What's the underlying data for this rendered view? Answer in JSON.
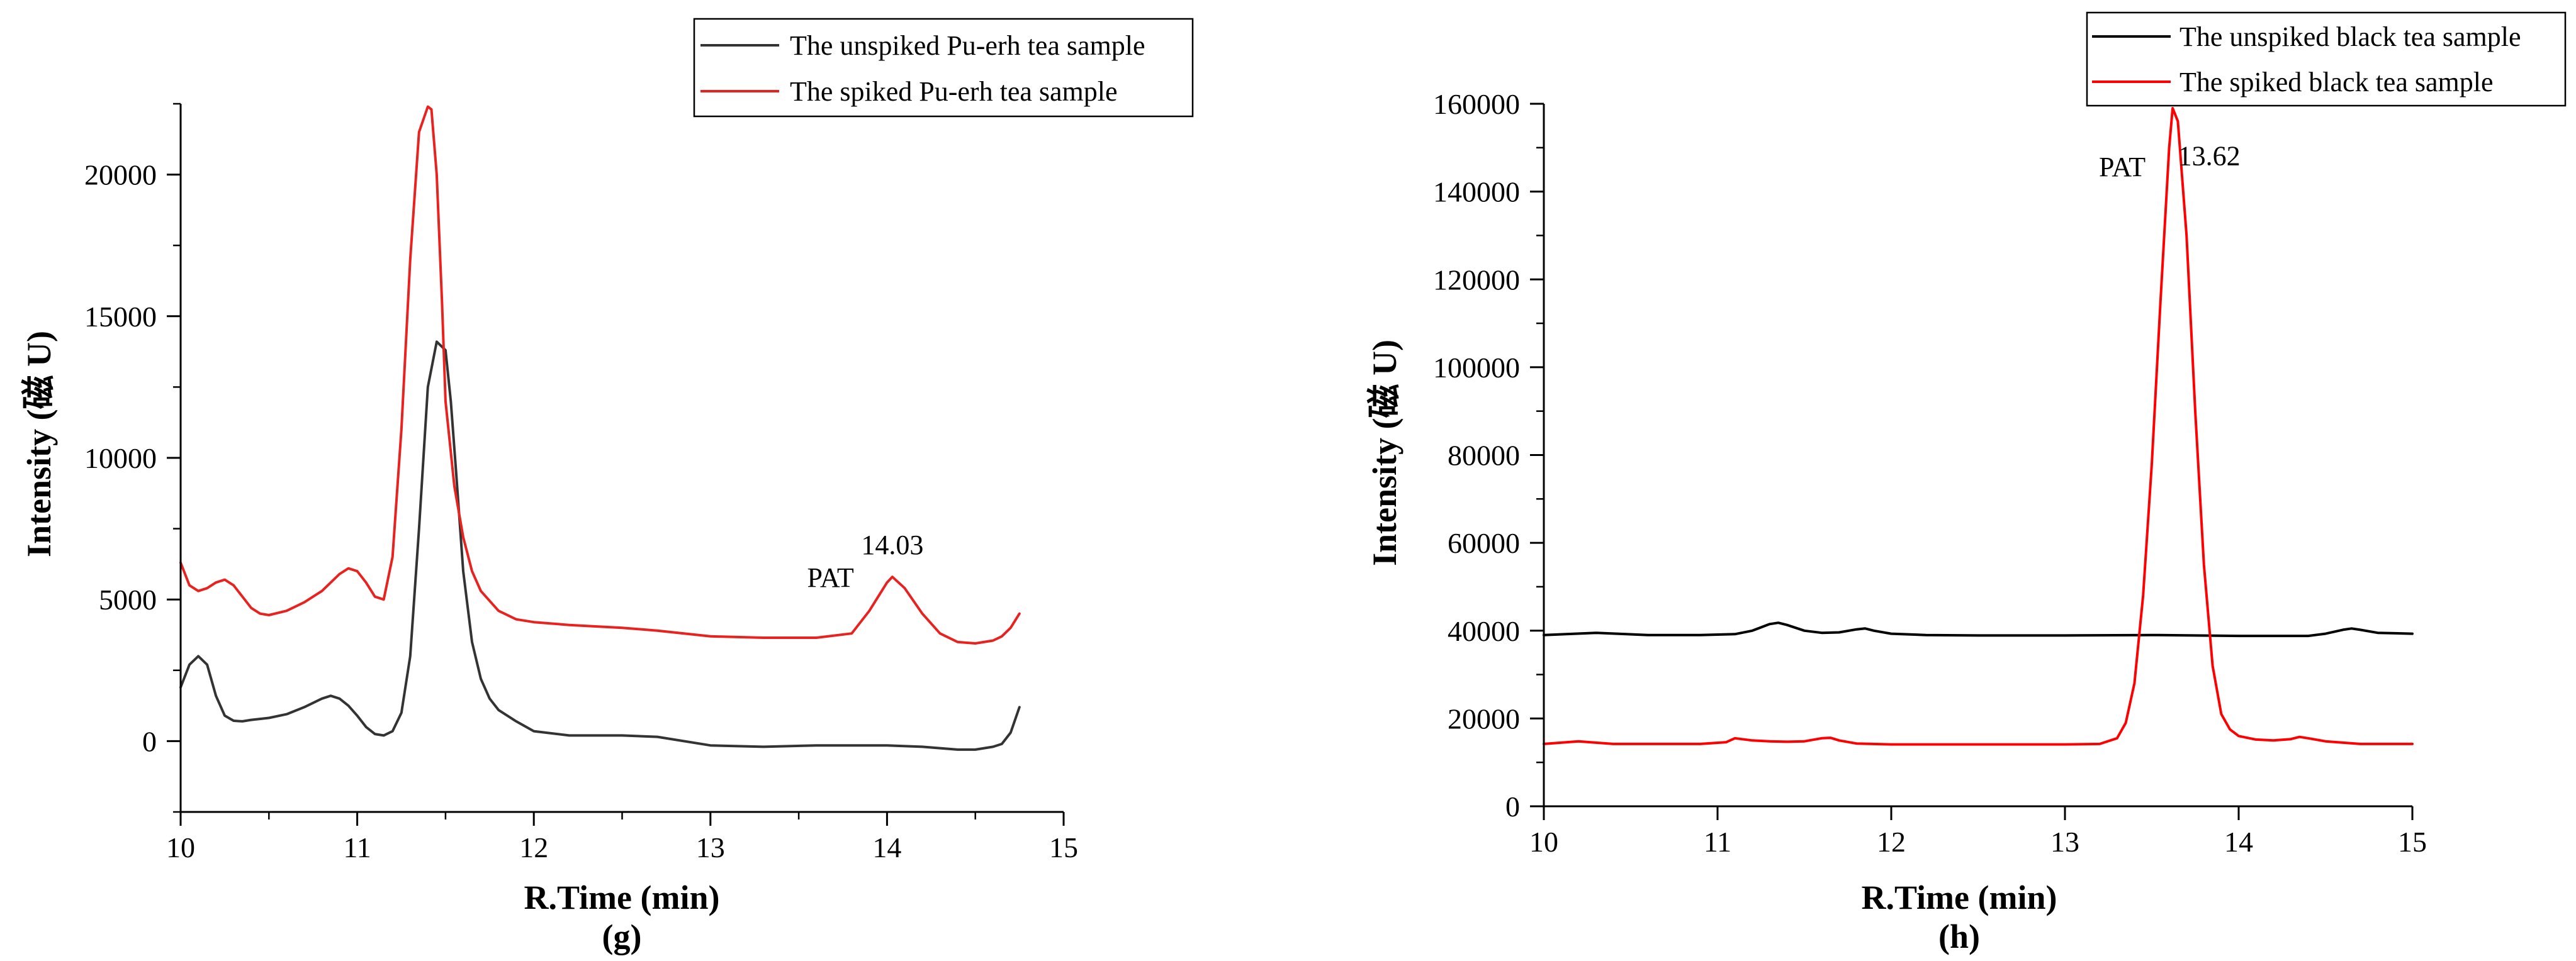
{
  "chart_data": [
    {
      "type": "line",
      "panel_label": "(g)",
      "xlabel": "R.Time (min)",
      "ylabel": "Intensity (磁 U)",
      "xlim": [
        10,
        15
      ],
      "ylim": [
        -2500,
        22500
      ],
      "xticks": [
        10,
        11,
        12,
        13,
        14,
        15
      ],
      "yticks": [
        0,
        5000,
        10000,
        15000,
        20000
      ],
      "legend_position": "top-right",
      "annotations": [
        {
          "text": "PAT",
          "x": 13.68,
          "y": 5450
        },
        {
          "text": "14.03",
          "x": 14.03,
          "y": 6600
        }
      ],
      "series": [
        {
          "name": "The unspiked Pu-erh tea sample",
          "color": "#333333",
          "x": [
            10.0,
            10.05,
            10.1,
            10.15,
            10.2,
            10.25,
            10.3,
            10.35,
            10.4,
            10.5,
            10.6,
            10.7,
            10.8,
            10.85,
            10.9,
            10.95,
            11.0,
            11.05,
            11.1,
            11.15,
            11.2,
            11.25,
            11.3,
            11.35,
            11.4,
            11.45,
            11.5,
            11.53,
            11.56,
            11.6,
            11.65,
            11.7,
            11.75,
            11.8,
            11.9,
            12.0,
            12.2,
            12.5,
            12.7,
            13.0,
            13.3,
            13.6,
            14.0,
            14.2,
            14.4,
            14.5,
            14.6,
            14.65,
            14.7,
            14.75
          ],
          "y": [
            1900,
            2700,
            3000,
            2700,
            1600,
            900,
            720,
            700,
            750,
            820,
            950,
            1200,
            1500,
            1600,
            1500,
            1250,
            900,
            500,
            250,
            200,
            350,
            1000,
            3000,
            7500,
            12500,
            14100,
            13800,
            12000,
            9500,
            6000,
            3500,
            2200,
            1500,
            1100,
            700,
            350,
            200,
            200,
            150,
            -150,
            -200,
            -150,
            -150,
            -200,
            -300,
            -300,
            -200,
            -100,
            300,
            1200
          ]
        },
        {
          "name": "The spiked Pu-erh tea sample",
          "color": "#e8231f",
          "x": [
            10.0,
            10.05,
            10.1,
            10.15,
            10.2,
            10.25,
            10.3,
            10.35,
            10.4,
            10.45,
            10.5,
            10.6,
            10.7,
            10.8,
            10.9,
            10.95,
            11.0,
            11.05,
            11.1,
            11.15,
            11.2,
            11.25,
            11.3,
            11.35,
            11.4,
            11.42,
            11.45,
            11.48,
            11.5,
            11.55,
            11.6,
            11.65,
            11.7,
            11.8,
            11.9,
            12.0,
            12.2,
            12.5,
            12.7,
            13.0,
            13.3,
            13.6,
            13.8,
            13.9,
            14.0,
            14.03,
            14.1,
            14.2,
            14.3,
            14.4,
            14.5,
            14.6,
            14.65,
            14.7,
            14.75
          ],
          "y": [
            6300,
            5500,
            5300,
            5400,
            5600,
            5700,
            5500,
            5100,
            4700,
            4500,
            4450,
            4600,
            4900,
            5300,
            5900,
            6100,
            6000,
            5600,
            5100,
            5000,
            6500,
            11000,
            17000,
            21500,
            22400,
            22300,
            20000,
            15500,
            12000,
            9000,
            7200,
            6000,
            5300,
            4600,
            4300,
            4200,
            4100,
            4000,
            3900,
            3700,
            3650,
            3650,
            3800,
            4600,
            5600,
            5800,
            5400,
            4500,
            3800,
            3500,
            3450,
            3550,
            3700,
            4000,
            4500
          ]
        }
      ]
    },
    {
      "type": "line",
      "panel_label": "(h)",
      "xlabel": "R.Time (min)",
      "ylabel": "Intensity (磁 U)",
      "xlim": [
        10,
        15
      ],
      "ylim": [
        0,
        160000
      ],
      "xticks": [
        10,
        11,
        12,
        13,
        14,
        15
      ],
      "yticks": [
        0,
        20000,
        40000,
        60000,
        80000,
        100000,
        120000,
        140000,
        160000
      ],
      "legend_position": "top-right",
      "annotations": [
        {
          "text": "PAT",
          "x": 13.33,
          "y": 143500
        },
        {
          "text": "13.62",
          "x": 13.83,
          "y": 146000
        }
      ],
      "series": [
        {
          "name": "The unspiked black tea sample",
          "color": "#000000",
          "x": [
            10.0,
            10.3,
            10.6,
            10.9,
            11.1,
            11.2,
            11.3,
            11.35,
            11.4,
            11.5,
            11.6,
            11.7,
            11.8,
            11.85,
            11.9,
            12.0,
            12.2,
            12.5,
            13.0,
            13.5,
            14.0,
            14.4,
            14.5,
            14.6,
            14.65,
            14.7,
            14.8,
            15.0
          ],
          "y": [
            39000,
            39500,
            39000,
            39000,
            39200,
            40000,
            41500,
            41800,
            41300,
            40000,
            39500,
            39600,
            40300,
            40500,
            40000,
            39300,
            39000,
            38900,
            38900,
            39000,
            38800,
            38800,
            39300,
            40200,
            40500,
            40200,
            39500,
            39300
          ]
        },
        {
          "name": "The spiked black tea sample",
          "color": "#ff0000",
          "x": [
            10.0,
            10.2,
            10.4,
            10.7,
            10.9,
            11.05,
            11.1,
            11.2,
            11.3,
            11.4,
            11.5,
            11.6,
            11.65,
            11.7,
            11.8,
            12.0,
            12.5,
            13.0,
            13.2,
            13.3,
            13.35,
            13.4,
            13.45,
            13.5,
            13.55,
            13.6,
            13.62,
            13.65,
            13.7,
            13.75,
            13.8,
            13.85,
            13.9,
            13.95,
            14.0,
            14.1,
            14.2,
            14.3,
            14.35,
            14.4,
            14.5,
            14.7,
            15.0
          ],
          "y": [
            14200,
            14800,
            14200,
            14200,
            14200,
            14600,
            15500,
            15000,
            14800,
            14700,
            14800,
            15500,
            15600,
            15000,
            14300,
            14100,
            14100,
            14100,
            14200,
            15500,
            19000,
            28000,
            48000,
            78000,
            115000,
            150000,
            159000,
            156000,
            130000,
            90000,
            55000,
            32000,
            21000,
            17500,
            16000,
            15200,
            15000,
            15300,
            15800,
            15500,
            14800,
            14200,
            14200
          ]
        }
      ]
    }
  ]
}
